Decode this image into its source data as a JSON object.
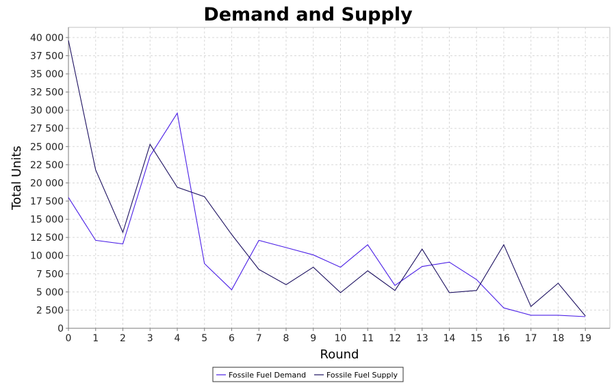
{
  "chart_data": {
    "type": "line",
    "title": "Demand and Supply",
    "xlabel": "Round",
    "ylabel": "Total Units",
    "x": [
      0,
      1,
      2,
      3,
      4,
      5,
      6,
      7,
      8,
      9,
      10,
      11,
      12,
      13,
      14,
      15,
      16,
      17,
      18,
      19
    ],
    "xlim": [
      0,
      19.9
    ],
    "ylim": [
      0,
      41400
    ],
    "yticks": [
      0,
      2500,
      5000,
      7500,
      10000,
      12500,
      15000,
      17500,
      20000,
      22500,
      25000,
      27500,
      30000,
      32500,
      35000,
      37500,
      40000
    ],
    "ytick_labels": [
      "0",
      "2 500",
      "5 000",
      "7 500",
      "10 000",
      "12 500",
      "15 000",
      "17 500",
      "20 000",
      "22 500",
      "25 000",
      "27 500",
      "30 000",
      "32 500",
      "35 000",
      "37 500",
      "40 000"
    ],
    "grid": true,
    "legend_position": "bottom-center",
    "series": [
      {
        "name": "Fossile Fuel Demand",
        "color": "#4a1ee6",
        "values": [
          18000,
          12100,
          11600,
          23700,
          29600,
          8900,
          5300,
          12100,
          11100,
          10100,
          8400,
          11500,
          5900,
          8500,
          9100,
          6700,
          2800,
          1800,
          1800,
          1600
        ]
      },
      {
        "name": "Fossile Fuel Supply",
        "color": "#1c1060",
        "values": [
          39600,
          21800,
          13200,
          25300,
          19400,
          18100,
          12900,
          8100,
          6000,
          8400,
          4900,
          7900,
          5200,
          10900,
          4900,
          5200,
          11500,
          3000,
          6200,
          1700
        ]
      }
    ]
  }
}
